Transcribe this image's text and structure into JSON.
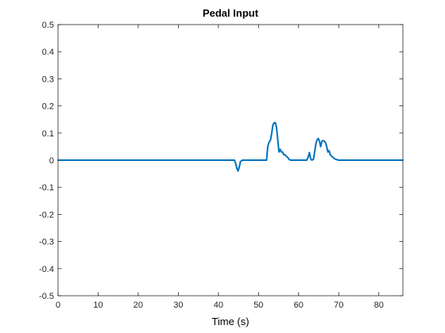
{
  "chart_data": {
    "type": "line",
    "title": "Pedal Input",
    "xlabel": "Time (s)",
    "ylabel": "",
    "xlim": [
      0,
      86
    ],
    "ylim": [
      -0.5,
      0.5
    ],
    "xticks": [
      0,
      10,
      20,
      30,
      40,
      50,
      60,
      70,
      80
    ],
    "yticks": [
      -0.5,
      -0.4,
      -0.3,
      -0.2,
      -0.1,
      0,
      0.1,
      0.2,
      0.3,
      0.4,
      0.5
    ],
    "xtick_labels": [
      "0",
      "10",
      "20",
      "30",
      "40",
      "50",
      "60",
      "70",
      "80"
    ],
    "ytick_labels": [
      "-0.5",
      "-0.4",
      "-0.3",
      "-0.2",
      "-0.1",
      "0",
      "0.1",
      "0.2",
      "0.3",
      "0.4",
      "0.5"
    ],
    "grid": false,
    "box": true,
    "line_color": "#0072bd",
    "series": [
      {
        "x": [
          0,
          44.0,
          44.3,
          44.6,
          44.9,
          45.2,
          45.5,
          46.0,
          52.0,
          52.3,
          52.6,
          53.0,
          53.3,
          53.6,
          53.9,
          54.2,
          54.5,
          54.8,
          55.1,
          55.4,
          55.7,
          56.0,
          56.3,
          56.6,
          56.9,
          57.3,
          57.6,
          58.0,
          62.0,
          62.4,
          62.7,
          63.0,
          63.3,
          63.7,
          64.0,
          64.3,
          64.6,
          64.9,
          65.2,
          65.5,
          65.8,
          66.1,
          66.4,
          66.7,
          67.0,
          67.3,
          67.6,
          67.9,
          68.2,
          68.6,
          69.0,
          69.5,
          70.0,
          71.0,
          86.0
        ],
        "y": [
          0,
          0,
          -0.012,
          -0.03,
          -0.04,
          -0.025,
          -0.005,
          0,
          0,
          0.05,
          0.065,
          0.075,
          0.1,
          0.13,
          0.138,
          0.138,
          0.12,
          0.075,
          0.03,
          0.04,
          0.03,
          0.03,
          0.02,
          0.02,
          0.015,
          0.01,
          0.003,
          0,
          0,
          0.012,
          0.028,
          0.005,
          0,
          0.003,
          0.03,
          0.06,
          0.075,
          0.08,
          0.07,
          0.05,
          0.07,
          0.072,
          0.07,
          0.065,
          0.05,
          0.03,
          0.035,
          0.02,
          0.015,
          0.01,
          0.005,
          0.002,
          0,
          0,
          0
        ]
      }
    ]
  }
}
